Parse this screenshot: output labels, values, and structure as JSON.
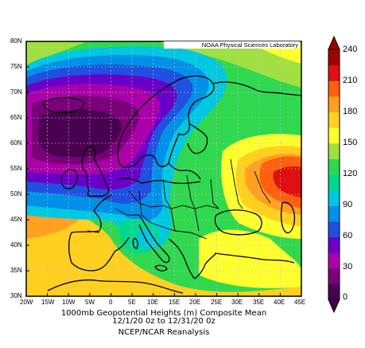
{
  "credit": "NOAA Physical Sciences Laboratory",
  "title": {
    "line1": "1000mb Geopotential Heights (m)   Composite Mean",
    "line2": "12/1/20 0z  to 12/31/20 0z",
    "line3": "NCEP/NCAR Reanalysis"
  },
  "axes": {
    "lat_labels": [
      "80N",
      "75N",
      "70N",
      "65N",
      "60N",
      "55N",
      "50N",
      "45N",
      "40N",
      "35N",
      "30N"
    ],
    "lon_labels": [
      "20W",
      "15W",
      "10W",
      "5W",
      "0",
      "5E",
      "10E",
      "15E",
      "20E",
      "25E",
      "30E",
      "35E",
      "40E",
      "45E"
    ]
  },
  "colorbar": {
    "labels": [
      "240",
      "210",
      "180",
      "150",
      "120",
      "90",
      "60",
      "30",
      "0"
    ],
    "colors": [
      "#4a0050",
      "#7a007a",
      "#aa00aa",
      "#6a00c8",
      "#2050e0",
      "#0090e8",
      "#00c8e0",
      "#00d890",
      "#30d850",
      "#a0e040",
      "#ffff30",
      "#ffd020",
      "#ffa020",
      "#ff6010",
      "#e01010",
      "#a00000"
    ]
  }
}
